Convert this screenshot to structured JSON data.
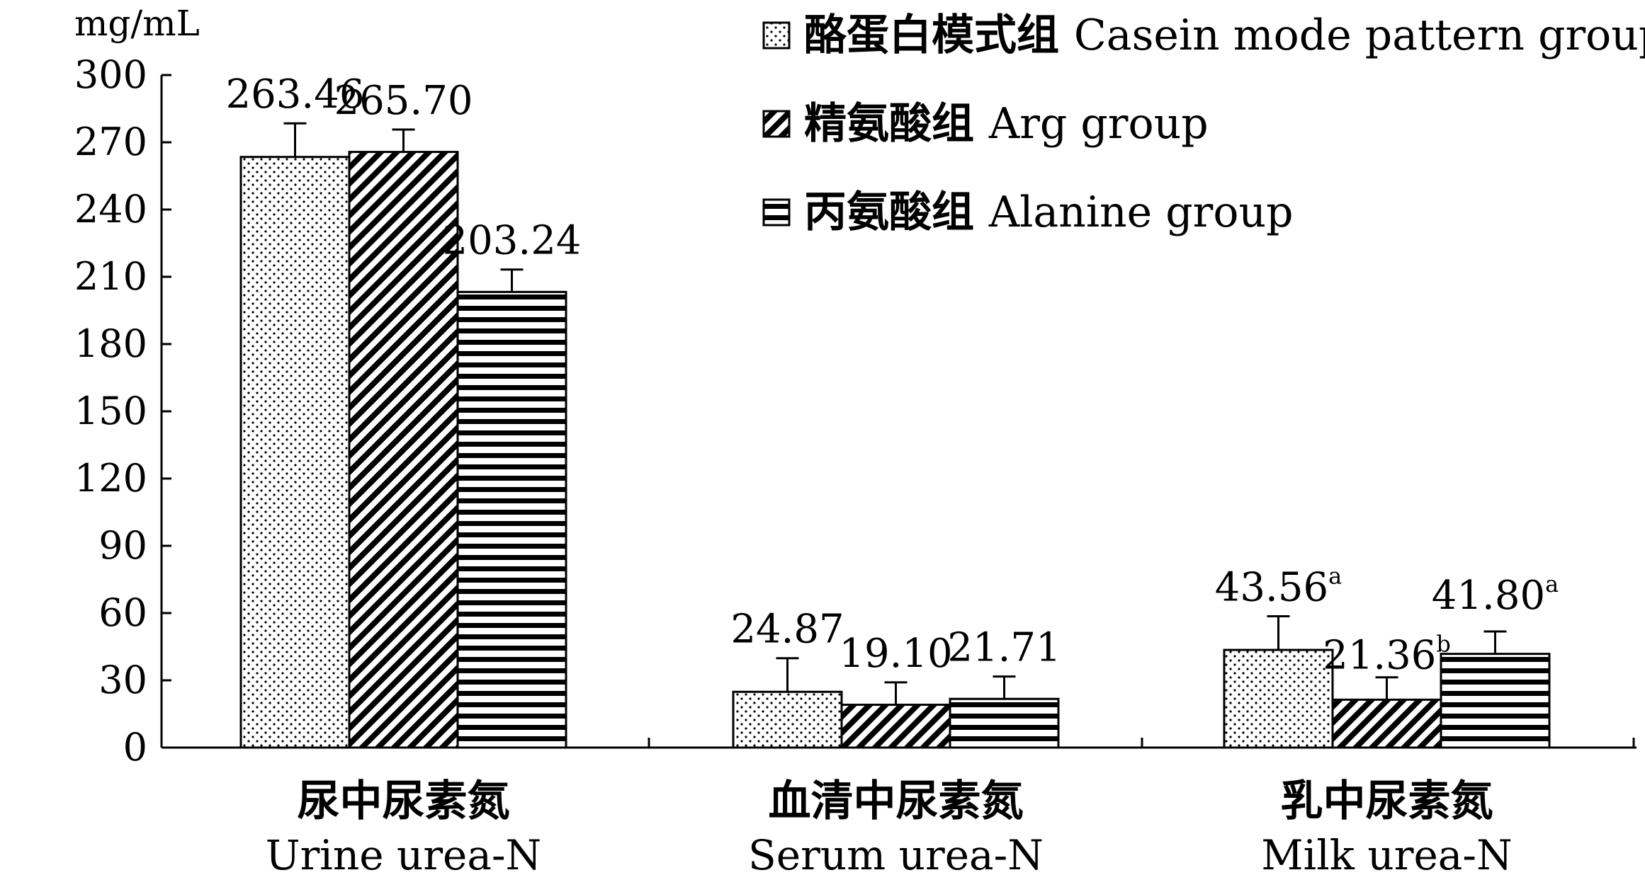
{
  "chart_data": {
    "type": "bar",
    "y_unit": "mg/mL",
    "ylim": [
      0,
      300
    ],
    "yticks": [
      0,
      30,
      60,
      90,
      120,
      150,
      180,
      210,
      240,
      270,
      300
    ],
    "grid": false,
    "legend_position": "top-right",
    "categories": [
      {
        "cn": "尿中尿素氮",
        "en": "Urine urea-N"
      },
      {
        "cn": "血清中尿素氮",
        "en": "Serum urea-N"
      },
      {
        "cn": "乳中尿素氮",
        "en": "Milk urea-N"
      }
    ],
    "series": [
      {
        "name_cn": "酪蛋白模式组",
        "name_en": "Casein mode pattern group",
        "pattern": "dots",
        "values": [
          263.46,
          24.87,
          43.56
        ],
        "labels": [
          "263.46",
          "24.87",
          "43.56"
        ],
        "superscripts": [
          "",
          "",
          "a"
        ],
        "errors": [
          15,
          15,
          15
        ]
      },
      {
        "name_cn": "精氨酸组",
        "name_en": "Arg group",
        "pattern": "diagonal",
        "values": [
          265.7,
          19.1,
          21.36
        ],
        "labels": [
          "265.70",
          "19.10",
          "21.36"
        ],
        "superscripts": [
          "",
          "",
          "b"
        ],
        "errors": [
          10,
          10,
          10
        ]
      },
      {
        "name_cn": "丙氨酸组",
        "name_en": "Alanine group",
        "pattern": "horizontal",
        "values": [
          203.24,
          21.71,
          41.8
        ],
        "labels": [
          "203.24",
          "21.71",
          "41.80"
        ],
        "superscripts": [
          "",
          "",
          "a"
        ],
        "errors": [
          10,
          10,
          10
        ]
      }
    ]
  }
}
